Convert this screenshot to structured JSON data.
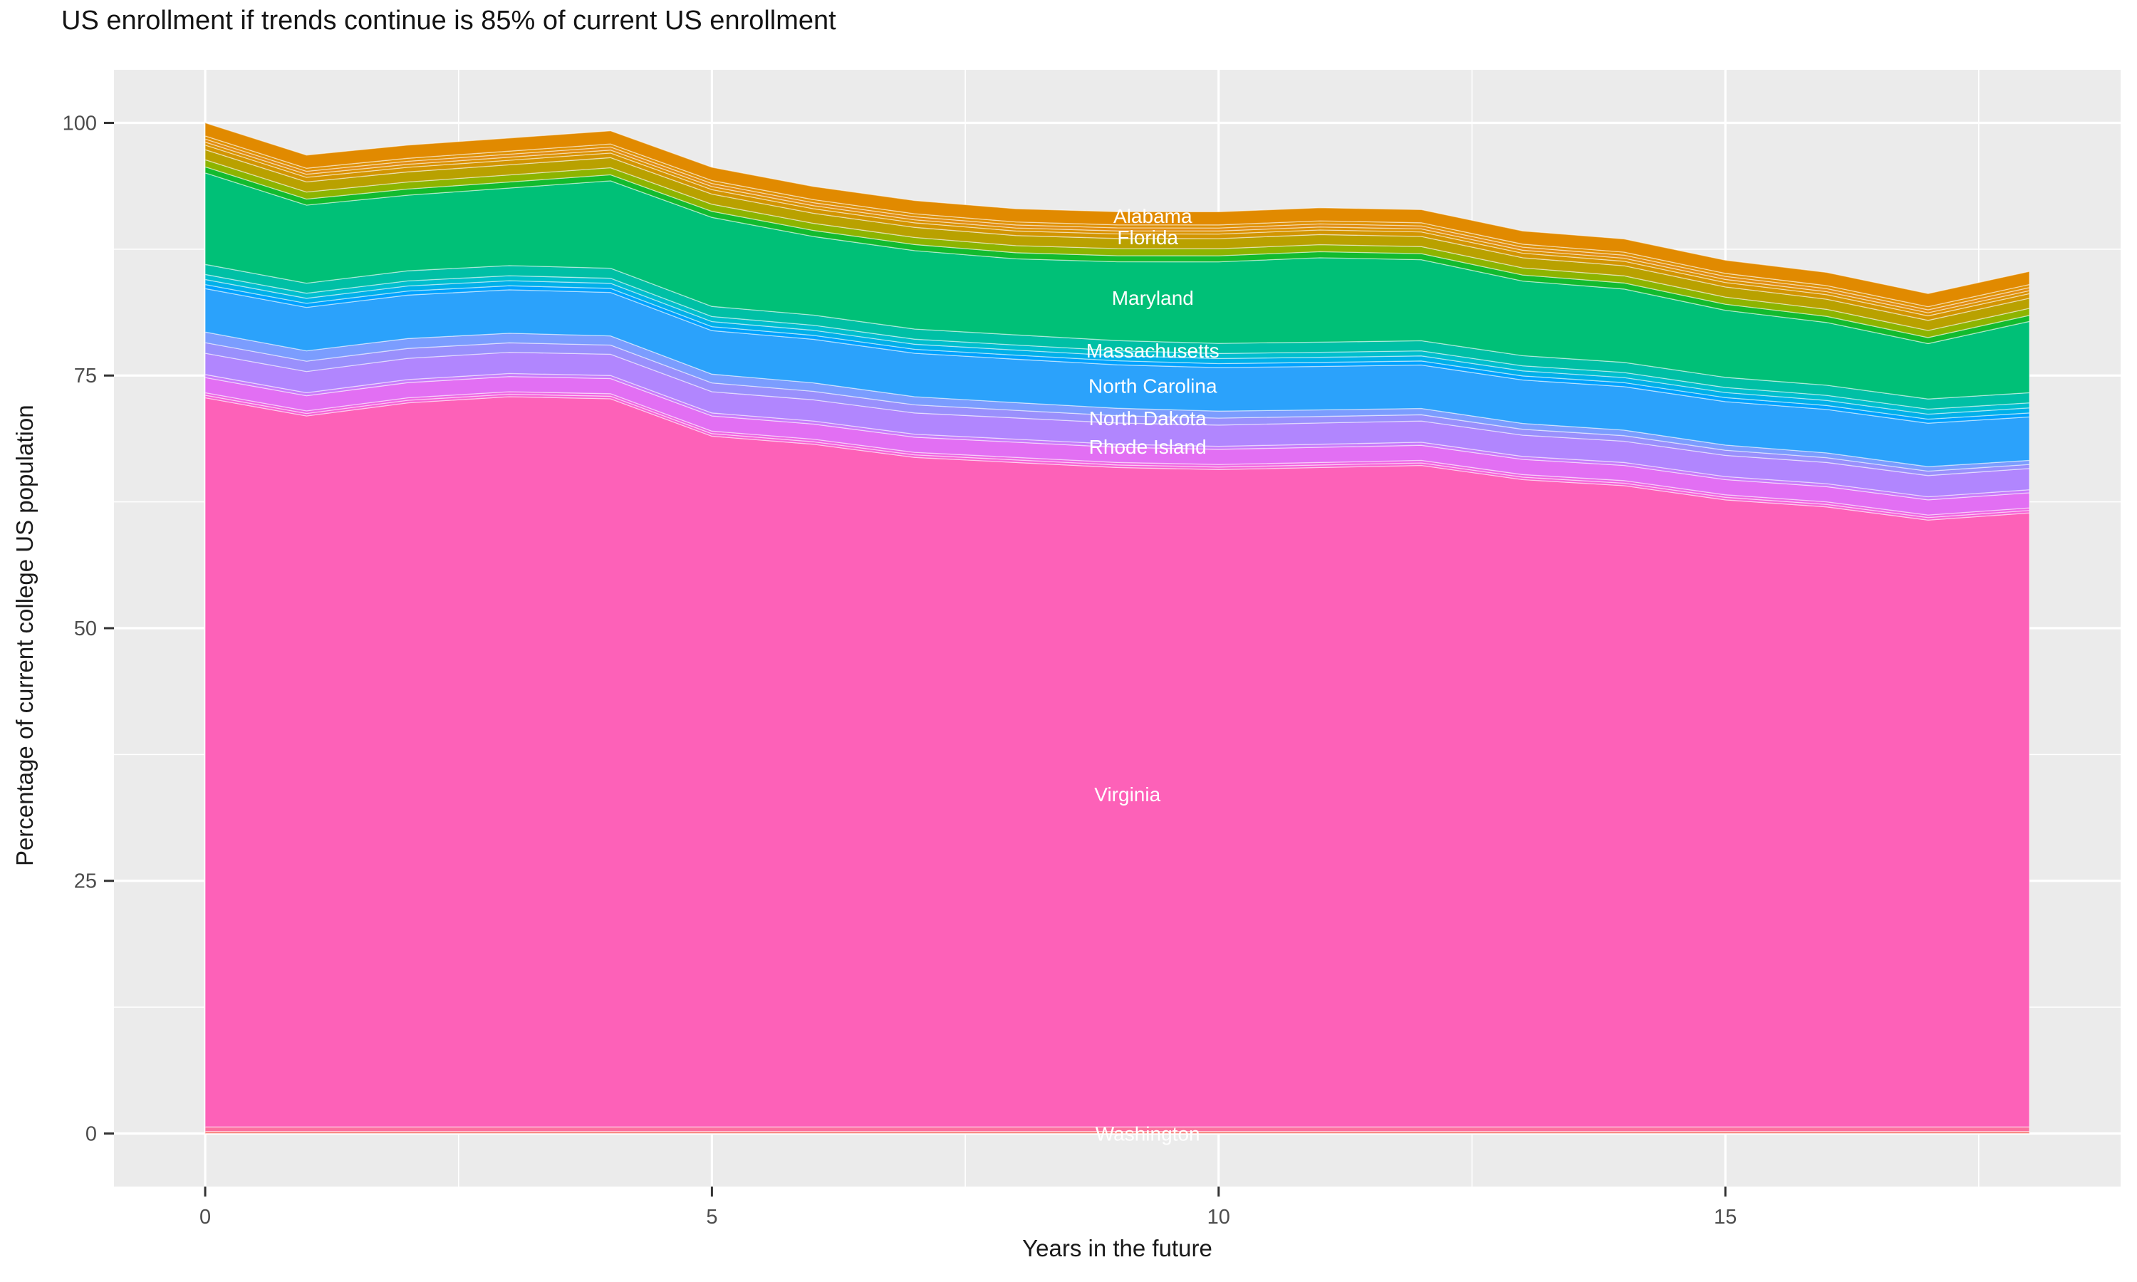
{
  "title": "US enrollment if trends continue is 85% of current US enrollment",
  "chart_data": {
    "type": "area",
    "stacked": true,
    "title": "US enrollment if trends continue is 85% of current US enrollment",
    "xlabel": "Years in the future",
    "ylabel": "Percentage of current college US population",
    "x": [
      0,
      1,
      2,
      3,
      4,
      5,
      6,
      7,
      8,
      9,
      10,
      11,
      12,
      13,
      14,
      15,
      16,
      17,
      18
    ],
    "x_ticks": [
      0,
      5,
      10,
      15
    ],
    "x_minor": [
      2.5,
      7.5,
      12.5,
      17.5
    ],
    "y_ticks": [
      0,
      25,
      50,
      75,
      100
    ],
    "y_minor": [
      12.5,
      37.5,
      62.5,
      87.5
    ],
    "xlim": [
      -0.9,
      18.9
    ],
    "ylim": [
      -5.25,
      105.25
    ],
    "panel_bg": "#EBEBEB",
    "grid_color": "#FFFFFF",
    "axis_text_color": "#4D4D4D",
    "tick_mark_color": "#333333",
    "annotation_text_color": "#FFFFFF",
    "legend_position": "none",
    "grid": "major+minor white on gray panel",
    "series": [
      {
        "name": "unlabeled-band-red",
        "label": "",
        "color": "#F8766D",
        "value": 0.2
      },
      {
        "name": "washington",
        "label": "Washington",
        "color": "#FC6F9F",
        "value": 0.45
      },
      {
        "name": "virginia",
        "label": "Virginia",
        "color": "#FD61B8",
        "values": [
          72.15,
          70.35,
          71.65,
          72.25,
          72.05,
          68.35,
          67.55,
          66.25,
          65.75,
          65.25,
          65.05,
          65.25,
          65.45,
          64.05,
          63.45,
          62.05,
          61.35,
          60.05,
          60.75
        ]
      },
      {
        "name": "unlabeled-band-magenta-1",
        "label": "",
        "color": "#F763D6",
        "value": 0.25
      },
      {
        "name": "unlabeled-band-magenta-2",
        "label": "",
        "color": "#EF66E4",
        "value": 0.25
      },
      {
        "name": "rhode-island",
        "label": "Rhode Island",
        "color": "#E26FF3",
        "value": 1.5
      },
      {
        "name": "unlabeled-band-violet",
        "label": "",
        "color": "#C97BFB",
        "value": 0.3
      },
      {
        "name": "north-dakota",
        "label": "North Dakota",
        "color": "#B186FE",
        "value": 2.1
      },
      {
        "name": "unlabeled-band-indigo-2",
        "label": "",
        "color": "#9A90FC",
        "values": [
          1.05,
          1.02,
          0.98,
          0.94,
          0.91,
          0.87,
          0.84,
          0.8,
          0.76,
          0.73,
          0.69,
          0.65,
          0.62,
          0.58,
          0.55,
          0.51,
          0.47,
          0.44,
          0.4
        ]
      },
      {
        "name": "unlabeled-band-indigo-1",
        "label": "",
        "color": "#7B9DFE",
        "values": [
          1.05,
          1.02,
          0.98,
          0.94,
          0.91,
          0.87,
          0.84,
          0.8,
          0.76,
          0.73,
          0.69,
          0.65,
          0.62,
          0.58,
          0.55,
          0.51,
          0.47,
          0.44,
          0.4
        ]
      },
      {
        "name": "north-carolina",
        "label": "North Carolina",
        "color": "#2BA2FB",
        "value": 4.3
      },
      {
        "name": "unlabeled-band-azure",
        "label": "",
        "color": "#00A2FF",
        "value": 0.4
      },
      {
        "name": "unlabeled-band-cyan-2",
        "label": "",
        "color": "#00B0E9",
        "value": 0.5
      },
      {
        "name": "unlabeled-band-cyan-1",
        "label": "",
        "color": "#00BFCE",
        "value": 0.5
      },
      {
        "name": "massachusetts",
        "label": "Massachusetts",
        "color": "#00C0A5",
        "value": 1.0
      },
      {
        "name": "maryland",
        "label": "Maryland",
        "color": "#00C077",
        "values": [
          9.05,
          7.72,
          7.49,
          7.67,
          8.64,
          8.81,
          7.78,
          7.76,
          7.53,
          7.8,
          8.07,
          8.35,
          8.02,
          7.39,
          7.26,
          6.64,
          6.21,
          5.48,
          7.05
        ]
      },
      {
        "name": "unlabeled-band-green",
        "label": "",
        "color": "#12BB2F",
        "value": 0.6
      },
      {
        "name": "unlabeled-band-yellowgreen",
        "label": "",
        "color": "#8DB400",
        "value": 0.7
      },
      {
        "name": "florida",
        "label": "Florida",
        "color": "#B9A100",
        "value": 1.0
      },
      {
        "name": "unlabeled-band-orange-1",
        "label": "",
        "color": "#D29500",
        "value": 0.45
      },
      {
        "name": "unlabeled-band-orange-2",
        "label": "",
        "color": "#DB9200",
        "value": 0.3
      },
      {
        "name": "unlabeled-band-orange-3",
        "label": "",
        "color": "#E28E12",
        "value": 0.3
      },
      {
        "name": "unlabeled-band-orange-4",
        "label": "",
        "color": "#E09000",
        "value": 0.3
      },
      {
        "name": "alabama",
        "label": "Alabama",
        "color": "#E18A00",
        "value": 1.3
      }
    ],
    "annotations": [
      {
        "text": "Alabama",
        "x": 9.35,
        "y": 90.8
      },
      {
        "text": "Florida",
        "x": 9.3,
        "y": 88.7
      },
      {
        "text": "Maryland",
        "x": 9.35,
        "y": 82.7
      },
      {
        "text": "Massachusetts",
        "x": 9.35,
        "y": 77.5
      },
      {
        "text": "North Carolina",
        "x": 9.35,
        "y": 74.0
      },
      {
        "text": "North Dakota",
        "x": 9.3,
        "y": 70.8
      },
      {
        "text": "Rhode Island",
        "x": 9.3,
        "y": 68.0
      },
      {
        "text": "Virginia",
        "x": 9.1,
        "y": 33.6
      },
      {
        "text": "Washington",
        "x": 9.3,
        "y": 0.0
      }
    ]
  }
}
